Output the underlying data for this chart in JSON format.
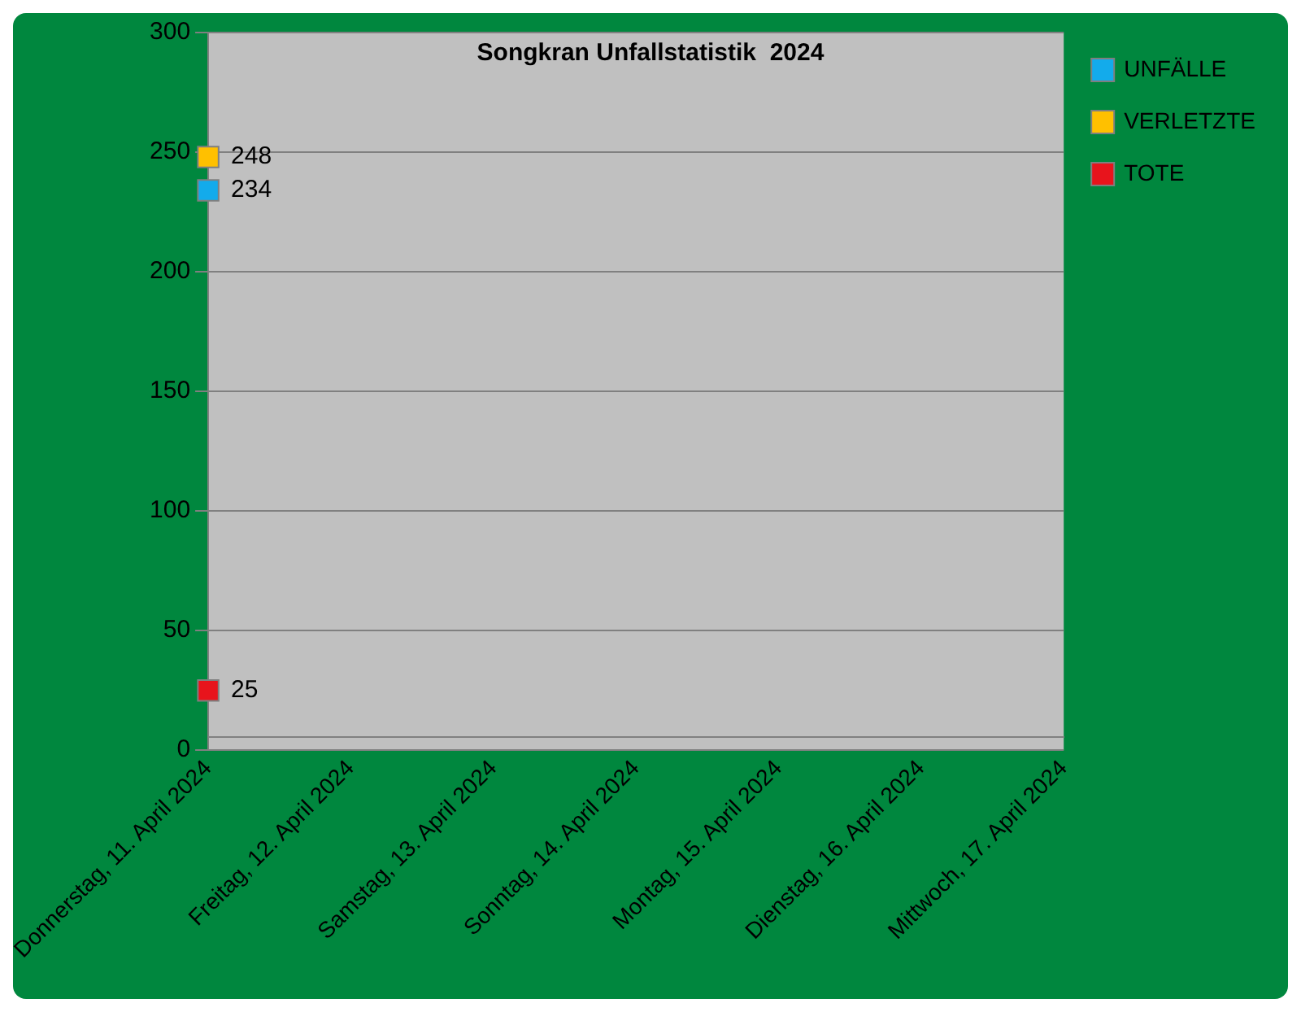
{
  "chart_data": {
    "type": "line",
    "title": "Songkran Unfallstatistik  2024",
    "categories": [
      "Donnerstag, 11. April 2024",
      "Freitag, 12. April 2024",
      "Samstag, 13. April 2024",
      "Sonntag, 14. April 2024",
      "Montag, 15. April 2024",
      "Dienstag, 16. April 2024",
      "Mittwoch, 17. April 2024"
    ],
    "series": [
      {
        "name": "UNFÄLLE",
        "color": "#13abeb",
        "values": [
          234,
          null,
          null,
          null,
          null,
          null,
          null
        ]
      },
      {
        "name": "VERLETZTE",
        "color": "#ffc000",
        "values": [
          248,
          null,
          null,
          null,
          null,
          null,
          null
        ]
      },
      {
        "name": "TOTE",
        "color": "#e8141c",
        "values": [
          25,
          null,
          null,
          null,
          null,
          null,
          null
        ]
      }
    ],
    "ylim": [
      0,
      300
    ],
    "yticks": [
      0,
      50,
      100,
      150,
      200,
      250,
      300
    ],
    "grid": "y",
    "legend": "top right",
    "marker": "square",
    "data_labels": true
  }
}
